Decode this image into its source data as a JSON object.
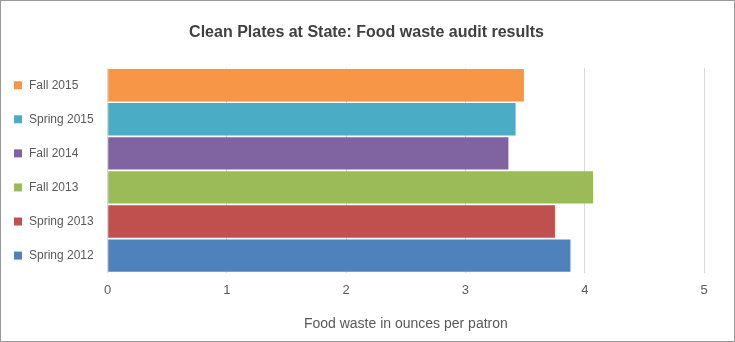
{
  "chart_data": {
    "type": "bar",
    "orientation": "horizontal",
    "title": "Clean Plates at State: Food waste audit results",
    "xlabel": "Food waste in ounces per patron",
    "categories": [
      "Fall 2015",
      "Spring 2015",
      "Fall 2014",
      "Fall 2013",
      "Spring 2013",
      "Spring 2012"
    ],
    "values": [
      3.49,
      3.42,
      3.36,
      4.07,
      3.75,
      3.88
    ],
    "colors": [
      "#f79646",
      "#4bacc6",
      "#8064a2",
      "#9bbb59",
      "#c0504d",
      "#4f81bd"
    ],
    "xlim": [
      0,
      5
    ],
    "xticks": [
      0,
      1,
      2,
      3,
      4,
      5
    ],
    "grid": true
  }
}
